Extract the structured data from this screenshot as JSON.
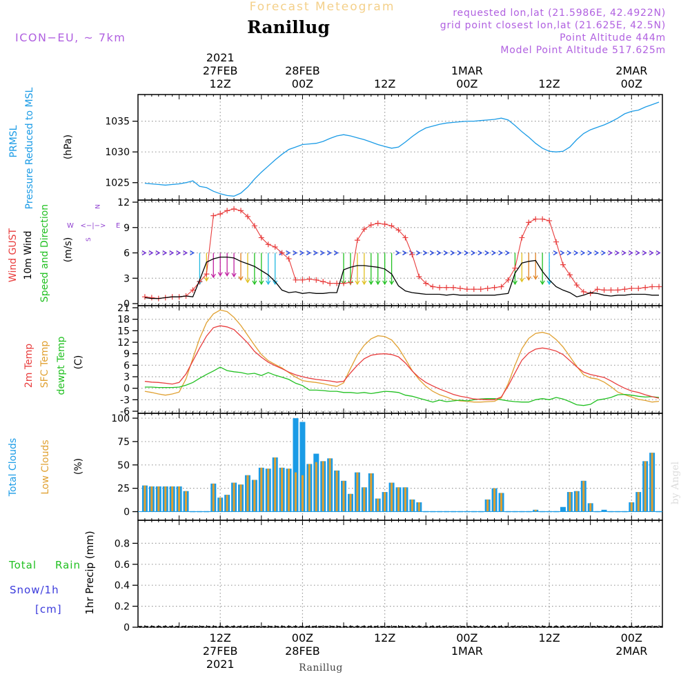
{
  "header": {
    "super_title": "Forecast Meteogram",
    "station": "Ranillug",
    "model": "ICON−EU,  ~ 7km",
    "requested": "requested lon,lat (21.5986E, 42.4922N)",
    "grid_point": "grid point closest lon,lat (21.625E, 42.5N)",
    "point_alt": "Point Altitude 444m",
    "model_alt": "Model Point Altitude 517.625m",
    "credit": "by Angel",
    "bottom_station": "Ranillug"
  },
  "colors": {
    "prmsl": "#1a9be6",
    "gust": "#e83c3c",
    "wind": "#000000",
    "temp2m": "#e83c3c",
    "sfc": "#e0a030",
    "dewpt": "#20c020",
    "total_cloud": "#1a9be6",
    "low_cloud": "#e0a030",
    "rain": "#20c020",
    "snow": "#3a3adc",
    "dir": "#9040d0",
    "header": "#b060e0"
  },
  "time_axis": {
    "top_ticks": [
      {
        "h": 12,
        "lines": [
          "2021",
          "27FEB",
          "12Z"
        ]
      },
      {
        "h": 24,
        "lines": [
          "28FEB",
          "00Z"
        ]
      },
      {
        "h": 36,
        "lines": [
          "12Z"
        ]
      },
      {
        "h": 48,
        "lines": [
          "1MAR",
          "00Z"
        ]
      },
      {
        "h": 60,
        "lines": [
          "12Z"
        ]
      },
      {
        "h": 72,
        "lines": [
          "2MAR",
          "00Z"
        ]
      }
    ],
    "bottom_ticks": [
      {
        "h": 12,
        "lines": [
          "12Z",
          "27FEB",
          "2021"
        ]
      },
      {
        "h": 24,
        "lines": [
          "00Z",
          "28FEB"
        ]
      },
      {
        "h": 36,
        "lines": [
          "12Z"
        ]
      },
      {
        "h": 48,
        "lines": [
          "00Z",
          "1MAR"
        ]
      },
      {
        "h": 60,
        "lines": [
          "12Z"
        ]
      },
      {
        "h": 72,
        "lines": [
          "00Z",
          "2MAR"
        ]
      }
    ]
  },
  "chart_data": [
    {
      "type": "line",
      "title": "PRMSL Pressure Reduced to MSL",
      "legend": [
        "PRMSL",
        "Pressure Reduced to MSL"
      ],
      "ylabel": "(hPa)",
      "ylim": [
        1022.5,
        1039
      ],
      "yticks": [
        1025,
        1030,
        1035
      ],
      "x_hours": [
        1,
        2,
        3,
        4,
        5,
        6,
        7,
        8,
        9,
        10,
        11,
        12,
        13,
        14,
        15,
        16,
        17,
        18,
        19,
        20,
        21,
        22,
        23,
        24,
        25,
        26,
        27,
        28,
        29,
        30,
        31,
        32,
        33,
        34,
        35,
        36,
        37,
        38,
        39,
        40,
        41,
        42,
        43,
        44,
        45,
        46,
        47,
        48,
        49,
        50,
        51,
        52,
        53,
        54,
        55,
        56,
        57,
        58,
        59,
        60,
        61,
        62,
        63,
        64,
        65,
        66,
        67,
        68,
        69,
        70,
        71,
        72,
        73,
        74,
        75,
        76
      ],
      "series": [
        {
          "name": "PRMSL",
          "values": [
            1024.9,
            1024.8,
            1024.7,
            1024.6,
            1024.7,
            1024.8,
            1025.0,
            1025.3,
            1024.4,
            1024.2,
            1023.6,
            1023.2,
            1022.9,
            1022.8,
            1023.3,
            1024.3,
            1025.6,
            1026.7,
            1027.7,
            1028.7,
            1029.6,
            1030.4,
            1030.8,
            1031.2,
            1031.3,
            1031.4,
            1031.7,
            1032.2,
            1032.6,
            1032.8,
            1032.6,
            1032.3,
            1032.0,
            1031.6,
            1031.2,
            1030.9,
            1030.6,
            1030.8,
            1031.6,
            1032.5,
            1033.3,
            1033.9,
            1034.2,
            1034.5,
            1034.7,
            1034.8,
            1034.9,
            1035.0,
            1035.0,
            1035.1,
            1035.2,
            1035.3,
            1035.5,
            1035.2,
            1034.3,
            1033.3,
            1032.4,
            1031.4,
            1030.6,
            1030.1,
            1030.0,
            1030.1,
            1030.8,
            1032.0,
            1033.0,
            1033.6,
            1034.0,
            1034.4,
            1034.9,
            1035.5,
            1036.2,
            1036.6,
            1036.8,
            1037.3,
            1037.7,
            1038.1
          ]
        }
      ]
    },
    {
      "type": "line",
      "title": "Wind GUST / 10m Wind Speed and Direction",
      "legend": [
        "Wind GUST",
        "10m Wind",
        "Speed and Direction"
      ],
      "ylabel": "(m/s)",
      "compass": {
        "n": "N",
        "e": "E",
        "s": "S",
        "w": "W",
        "arrows": "<−|−>"
      },
      "ylim": [
        0,
        12
      ],
      "yticks": [
        0,
        3,
        6,
        9,
        12
      ],
      "x_hours": [
        1,
        2,
        3,
        4,
        5,
        6,
        7,
        8,
        9,
        10,
        11,
        12,
        13,
        14,
        15,
        16,
        17,
        18,
        19,
        20,
        21,
        22,
        23,
        24,
        25,
        26,
        27,
        28,
        29,
        30,
        31,
        32,
        33,
        34,
        35,
        36,
        37,
        38,
        39,
        40,
        41,
        42,
        43,
        44,
        45,
        46,
        47,
        48,
        49,
        50,
        51,
        52,
        53,
        54,
        55,
        56,
        57,
        58,
        59,
        60,
        61,
        62,
        63,
        64,
        65,
        66,
        67,
        68,
        69,
        70,
        71,
        72,
        73,
        74,
        75,
        76
      ],
      "series": [
        {
          "name": "Wind GUST",
          "values": [
            0.8,
            0.7,
            0.6,
            0.7,
            0.8,
            0.8,
            0.9,
            1.6,
            2.6,
            3.5,
            10.4,
            10.6,
            11.0,
            11.2,
            11.0,
            10.3,
            9.2,
            7.8,
            7.0,
            6.7,
            6.0,
            5.3,
            2.8,
            2.8,
            2.9,
            2.8,
            2.6,
            2.4,
            2.4,
            2.4,
            2.5,
            7.5,
            8.8,
            9.3,
            9.5,
            9.4,
            9.2,
            8.7,
            7.8,
            5.8,
            3.2,
            2.4,
            2.0,
            1.9,
            1.9,
            1.9,
            1.8,
            1.7,
            1.7,
            1.7,
            1.8,
            1.9,
            2.0,
            2.8,
            4.2,
            7.8,
            9.6,
            10.0,
            10.0,
            9.8,
            7.3,
            4.6,
            3.4,
            2.2,
            1.4,
            1.2,
            1.7,
            1.6,
            1.6,
            1.6,
            1.7,
            1.8,
            1.8,
            1.9,
            2.0,
            2.0
          ]
        },
        {
          "name": "10m Wind",
          "values": [
            0.7,
            0.6,
            0.6,
            0.7,
            0.8,
            0.8,
            0.9,
            0.8,
            2.8,
            4.9,
            5.3,
            5.5,
            5.5,
            5.4,
            5.0,
            4.7,
            4.4,
            3.9,
            3.4,
            2.6,
            1.6,
            1.3,
            1.4,
            1.2,
            1.3,
            1.2,
            1.2,
            1.3,
            1.3,
            4.0,
            4.3,
            4.5,
            4.5,
            4.4,
            4.3,
            4.1,
            3.5,
            2.1,
            1.5,
            1.3,
            1.2,
            1.1,
            1.1,
            1.1,
            1.0,
            1.1,
            1.0,
            1.0,
            1.0,
            1.0,
            1.0,
            1.0,
            1.1,
            1.2,
            3.6,
            4.8,
            5.0,
            5.1,
            3.8,
            2.8,
            2.0,
            1.6,
            1.3,
            0.8,
            1.0,
            1.3,
            1.2,
            1.0,
            0.9,
            1.0,
            1.0,
            1.1,
            1.1,
            1.1,
            1.0,
            1.0
          ]
        }
      ]
    },
    {
      "type": "line",
      "title": "2m Temp / SFC Temp / dewpt Temp",
      "legend": [
        "2m Temp",
        "SFC Temp",
        "dewpt Temp"
      ],
      "ylabel": "(C)",
      "ylim": [
        -6,
        21
      ],
      "yticks": [
        -6,
        -3,
        0,
        3,
        6,
        9,
        12,
        15,
        18,
        21
      ],
      "x_hours": [
        1,
        2,
        3,
        4,
        5,
        6,
        7,
        8,
        9,
        10,
        11,
        12,
        13,
        14,
        15,
        16,
        17,
        18,
        19,
        20,
        21,
        22,
        23,
        24,
        25,
        26,
        27,
        28,
        29,
        30,
        31,
        32,
        33,
        34,
        35,
        36,
        37,
        38,
        39,
        40,
        41,
        42,
        43,
        44,
        45,
        46,
        47,
        48,
        49,
        50,
        51,
        52,
        53,
        54,
        55,
        56,
        57,
        58,
        59,
        60,
        61,
        62,
        63,
        64,
        65,
        66,
        67,
        68,
        69,
        70,
        71,
        72,
        73,
        74,
        75,
        76
      ],
      "series": [
        {
          "name": "2m Temp",
          "values": [
            1.8,
            1.6,
            1.5,
            1.3,
            1.1,
            1.5,
            3.7,
            7.1,
            10.5,
            13.6,
            15.8,
            16.3,
            16.0,
            15.3,
            13.6,
            11.8,
            9.6,
            8.1,
            6.8,
            5.9,
            5.1,
            4.2,
            3.5,
            3.0,
            2.6,
            2.3,
            2.1,
            1.9,
            1.6,
            1.8,
            4.0,
            6.0,
            7.7,
            8.6,
            8.9,
            9.0,
            8.8,
            8.2,
            6.6,
            4.5,
            2.8,
            1.5,
            0.6,
            -0.2,
            -0.9,
            -1.6,
            -2.1,
            -2.4,
            -2.8,
            -2.9,
            -3.0,
            -3.0,
            -2.3,
            0.6,
            4.0,
            7.3,
            9.2,
            10.2,
            10.5,
            10.2,
            9.7,
            8.8,
            7.2,
            5.6,
            4.2,
            3.6,
            3.2,
            2.8,
            1.9,
            0.9,
            0.0,
            -0.7,
            -1.1,
            -1.7,
            -2.2,
            -2.6
          ]
        },
        {
          "name": "SFC Temp",
          "values": [
            -0.8,
            -1.1,
            -1.5,
            -1.8,
            -1.5,
            -1.0,
            2.4,
            7.8,
            13.0,
            17.1,
            19.4,
            20.4,
            20.0,
            18.5,
            16.4,
            13.8,
            11.2,
            8.8,
            7.2,
            6.2,
            5.3,
            4.1,
            2.9,
            2.0,
            1.7,
            1.5,
            1.2,
            0.8,
            0.5,
            1.4,
            5.2,
            8.7,
            11.2,
            12.9,
            13.7,
            13.5,
            12.6,
            10.5,
            7.6,
            4.6,
            2.3,
            0.5,
            -0.8,
            -1.7,
            -2.3,
            -3.0,
            -3.3,
            -3.4,
            -3.6,
            -3.6,
            -3.5,
            -3.4,
            -2.5,
            1.2,
            6.0,
            10.3,
            13.0,
            14.3,
            14.6,
            14.1,
            12.7,
            10.8,
            8.3,
            5.7,
            3.5,
            2.7,
            2.4,
            1.6,
            0.4,
            -1.0,
            -1.7,
            -2.3,
            -2.9,
            -3.2,
            -3.6,
            -3.4
          ]
        },
        {
          "name": "dewpt Temp",
          "values": [
            0.3,
            0.3,
            0.2,
            0.2,
            0.2,
            0.3,
            0.8,
            1.5,
            2.6,
            3.6,
            4.5,
            5.5,
            4.6,
            4.3,
            4.1,
            3.7,
            3.9,
            3.3,
            4.1,
            3.4,
            2.9,
            2.3,
            1.3,
            0.7,
            -0.5,
            -0.5,
            -0.6,
            -0.8,
            -0.8,
            -1.1,
            -1.1,
            -1.3,
            -1.1,
            -1.4,
            -1.1,
            -0.8,
            -0.9,
            -1.1,
            -1.8,
            -2.1,
            -2.6,
            -3.1,
            -3.6,
            -3.1,
            -3.5,
            -3.3,
            -3.1,
            -3.3,
            -3.0,
            -2.8,
            -2.7,
            -2.7,
            -3.0,
            -3.3,
            -3.5,
            -3.6,
            -3.6,
            -3.0,
            -2.7,
            -3.0,
            -2.4,
            -2.8,
            -3.5,
            -4.3,
            -4.5,
            -4.2,
            -3.1,
            -2.8,
            -2.4,
            -1.7,
            -1.6,
            -1.8,
            -2.1,
            -2.3,
            -2.2,
            -2.4
          ]
        }
      ]
    },
    {
      "type": "bar",
      "title": "Total Clouds / Low Clouds",
      "legend": [
        "Total Clouds",
        "Low Clouds"
      ],
      "ylabel": "(%)",
      "ylim": [
        -7,
        103
      ],
      "yticks": [
        0,
        25,
        50,
        75,
        100
      ],
      "x_hours": [
        1,
        2,
        3,
        4,
        5,
        6,
        7,
        8,
        9,
        10,
        11,
        12,
        13,
        14,
        15,
        16,
        17,
        18,
        19,
        20,
        21,
        22,
        23,
        24,
        25,
        26,
        27,
        28,
        29,
        30,
        31,
        32,
        33,
        34,
        35,
        36,
        37,
        38,
        39,
        40,
        41,
        42,
        43,
        44,
        45,
        46,
        47,
        48,
        49,
        50,
        51,
        52,
        53,
        54,
        55,
        56,
        57,
        58,
        59,
        60,
        61,
        62,
        63,
        64,
        65,
        66,
        67,
        68,
        69,
        70,
        71,
        72,
        73,
        74,
        75,
        76
      ],
      "series": [
        {
          "name": "Total Clouds",
          "values": [
            28,
            27,
            27,
            27,
            27,
            27,
            22,
            0,
            0,
            0,
            30,
            15,
            18,
            31,
            29,
            39,
            34,
            47,
            46,
            58,
            47,
            46,
            100,
            96,
            51,
            62,
            54,
            57,
            44,
            33,
            19,
            42,
            26,
            41,
            14,
            21,
            31,
            26,
            26,
            13,
            10,
            0,
            0,
            0,
            0,
            0,
            0,
            0,
            0,
            0,
            13,
            25,
            20,
            0,
            0,
            0,
            0,
            2,
            0,
            0,
            0,
            5,
            21,
            22,
            33,
            9,
            0,
            2,
            0,
            0,
            0,
            10,
            21,
            54,
            63,
            0
          ]
        },
        {
          "name": "Low Clouds",
          "values": [
            28,
            27,
            27,
            27,
            27,
            27,
            22,
            0,
            0,
            0,
            30,
            15,
            18,
            31,
            29,
            39,
            34,
            47,
            46,
            58,
            47,
            46,
            42,
            39,
            51,
            53,
            54,
            57,
            44,
            33,
            19,
            42,
            26,
            41,
            14,
            21,
            31,
            26,
            26,
            13,
            10,
            0,
            0,
            0,
            0,
            0,
            0,
            0,
            0,
            0,
            13,
            25,
            20,
            0,
            0,
            0,
            0,
            2,
            0,
            0,
            0,
            0,
            21,
            22,
            33,
            9,
            0,
            0,
            0,
            0,
            0,
            10,
            21,
            54,
            63,
            0
          ]
        }
      ]
    },
    {
      "type": "bar",
      "title": "Total Rain / Snow / 1hr Precip",
      "legend_rain": [
        "Total",
        "Rain"
      ],
      "legend_snow": [
        "Snow/1h",
        "[cm]"
      ],
      "ylabel": "1hr Precip (mm)",
      "ylim": [
        0,
        1.0
      ],
      "yticks": [
        0,
        0.2,
        0.4,
        0.6,
        0.8
      ],
      "x_hours": [],
      "series": [
        {
          "name": "Total Rain",
          "values": []
        }
      ]
    }
  ]
}
